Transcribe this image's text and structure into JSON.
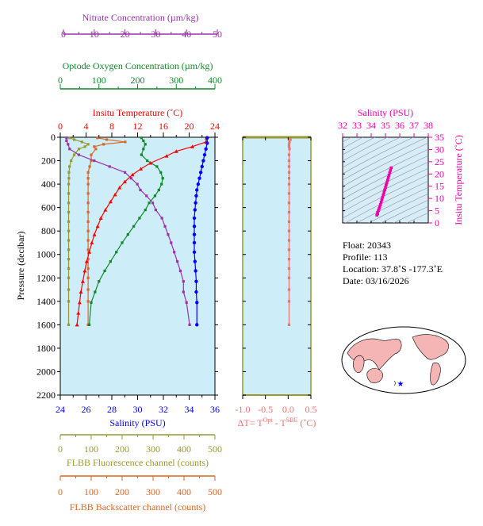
{
  "chart_data": [
    {
      "type": "line",
      "title": "",
      "ylabel": "Pressure (decibar)",
      "ylim": [
        2200,
        0
      ],
      "yticks": [
        "0",
        "200",
        "400",
        "600",
        "800",
        "1000",
        "1200",
        "1400",
        "1600",
        "1800",
        "2000",
        "2200"
      ],
      "grid": false,
      "axes": {
        "temperature": {
          "label": "Insitu Temperature (˚C)",
          "color": "#ff0000",
          "range": [
            0,
            24
          ],
          "ticks": [
            "0",
            "4",
            "8",
            "12",
            "16",
            "20",
            "24"
          ]
        },
        "salinity": {
          "label": "Salinity (PSU)",
          "color": "#0000ff",
          "range": [
            24,
            36
          ],
          "ticks": [
            "24",
            "26",
            "28",
            "30",
            "32",
            "34",
            "36"
          ]
        },
        "nitrate": {
          "label": "Nitrate Concentration (µm/kg)",
          "color": "#9933aa",
          "range": [
            0,
            50
          ],
          "ticks": [
            "0",
            "10",
            "20",
            "30",
            "40",
            "50"
          ]
        },
        "oxygen": {
          "label": "Optode Oxygen Concentration (µm/kg)",
          "color": "#11882a",
          "range": [
            0,
            400
          ],
          "ticks": [
            "0",
            "100",
            "200",
            "300",
            "400"
          ]
        },
        "fluorescence": {
          "label": "FLBB Fluorescence channel (counts)",
          "color": "#999933",
          "range": [
            0,
            500
          ],
          "ticks": [
            "0",
            "100",
            "200",
            "300",
            "400",
            "500"
          ]
        },
        "backscatter": {
          "label": "FLBB Backscatter channel (counts)",
          "color": "#dd6622",
          "range": [
            0,
            500
          ],
          "ticks": [
            "0",
            "100",
            "200",
            "300",
            "400",
            "500"
          ]
        }
      },
      "series": [
        {
          "axis": "temperature",
          "x": [
            22.7,
            22.6,
            20.5,
            18.0,
            16.5,
            14.0,
            12.5,
            11.2,
            10.0,
            9.2,
            8.5,
            7.8,
            7.0,
            6.3,
            5.8,
            5.3,
            4.9,
            4.5,
            4.1,
            3.8,
            3.5,
            3.2,
            3.0,
            2.8,
            2.6
          ],
          "y": [
            5,
            40,
            80,
            120,
            160,
            220,
            270,
            320,
            380,
            430,
            490,
            550,
            620,
            690,
            760,
            830,
            900,
            980,
            1060,
            1140,
            1230,
            1320,
            1410,
            1500,
            1600
          ]
        },
        {
          "axis": "salinity",
          "x": [
            35.4,
            35.4,
            35.3,
            35.2,
            35.1,
            35.0,
            34.9,
            34.8,
            34.7,
            34.6,
            34.55,
            34.5,
            34.45,
            34.4,
            34.4,
            34.4,
            34.4,
            34.4,
            34.45,
            34.5,
            34.55,
            34.55,
            34.6,
            34.6
          ],
          "y": [
            5,
            50,
            100,
            150,
            200,
            250,
            300,
            350,
            400,
            450,
            500,
            560,
            620,
            690,
            760,
            830,
            900,
            980,
            1060,
            1140,
            1230,
            1320,
            1410,
            1600
          ]
        },
        {
          "axis": "nitrate",
          "x": [
            1,
            1,
            1.5,
            2,
            5,
            10,
            15,
            20,
            22,
            24,
            25,
            27,
            29,
            30,
            32,
            33,
            34,
            35,
            36,
            37,
            38,
            39,
            39,
            40,
            41
          ],
          "y": [
            5,
            30,
            60,
            100,
            150,
            200,
            250,
            300,
            350,
            400,
            450,
            500,
            560,
            620,
            690,
            760,
            830,
            900,
            980,
            1060,
            1140,
            1230,
            1320,
            1410,
            1600
          ]
        },
        {
          "axis": "oxygen",
          "x": [
            210,
            215,
            220,
            215,
            210,
            225,
            250,
            260,
            265,
            262,
            255,
            245,
            230,
            220,
            205,
            190,
            175,
            160,
            145,
            130,
            115,
            100,
            90,
            80,
            75
          ],
          "y": [
            5,
            30,
            60,
            100,
            150,
            200,
            250,
            300,
            350,
            400,
            450,
            500,
            560,
            620,
            690,
            760,
            830,
            900,
            980,
            1060,
            1140,
            1230,
            1320,
            1410,
            1600
          ]
        },
        {
          "axis": "fluorescence",
          "x": [
            30,
            45,
            70,
            90,
            80,
            60,
            45,
            35,
            30,
            28,
            28,
            27,
            27,
            27,
            27,
            27,
            27,
            27,
            27,
            27,
            27,
            27,
            27,
            27,
            27
          ],
          "y": [
            5,
            20,
            40,
            60,
            80,
            100,
            150,
            200,
            250,
            300,
            350,
            400,
            480,
            560,
            640,
            720,
            800,
            880,
            960,
            1040,
            1120,
            1200,
            1300,
            1400,
            1600
          ]
        },
        {
          "axis": "backscatter",
          "x": [
            120,
            150,
            210,
            140,
            110,
            115,
            100,
            100,
            95,
            90,
            90,
            90,
            90,
            90,
            90,
            90,
            90,
            90,
            90,
            90,
            90,
            90,
            90,
            90,
            90
          ],
          "y": [
            5,
            20,
            40,
            60,
            80,
            100,
            150,
            200,
            250,
            300,
            350,
            400,
            480,
            560,
            640,
            720,
            800,
            880,
            960,
            1040,
            1120,
            1200,
            1300,
            1400,
            1600
          ]
        }
      ]
    },
    {
      "type": "line",
      "title": "",
      "xlabel": "ΔT= T^Opt - T^SBE (˚C)",
      "xlabel_parts": {
        "pre": "ΔT= T",
        "sup1": "Opt",
        "mid": " - T",
        "sup2": "SBE",
        "post": " (˚C)"
      },
      "xlim": [
        -1.0,
        0.5
      ],
      "xticks": [
        "-1.0",
        "-0.5",
        "0.0",
        "0.5"
      ],
      "ylim": [
        2200,
        0
      ],
      "color": "#f07070",
      "series": [
        {
          "x": [
            0.04,
            0.05,
            0.03,
            0.02,
            0.02,
            0.03,
            0.02,
            0.02,
            0.02,
            0.02,
            0.02,
            0.02,
            0.02,
            0.02,
            0.02,
            0.02,
            0.02,
            0.02,
            0.02,
            0.02,
            0.02,
            0.02,
            0.02,
            0.02,
            0.02
          ],
          "y": [
            5,
            20,
            40,
            60,
            80,
            100,
            150,
            200,
            250,
            300,
            350,
            400,
            480,
            560,
            640,
            720,
            800,
            880,
            960,
            1040,
            1120,
            1200,
            1300,
            1400,
            1600
          ]
        }
      ]
    },
    {
      "type": "scatter",
      "title": "",
      "xlabel": "Salinity (PSU)",
      "ylabel": "Insitu Temperature (˚C)",
      "xlim": [
        32,
        38
      ],
      "ylim": [
        0,
        35
      ],
      "xticks": [
        "32",
        "33",
        "34",
        "35",
        "36",
        "37",
        "38"
      ],
      "yticks": [
        "0",
        "5",
        "10",
        "15",
        "20",
        "25",
        "30",
        "35"
      ],
      "color": "#ee00aa",
      "series": [
        {
          "x": [
            35.4,
            35.35,
            35.3,
            35.25,
            35.2,
            35.15,
            35.1,
            35.05,
            35.0,
            34.95,
            34.9,
            34.85,
            34.8,
            34.75,
            34.7,
            34.65,
            34.6,
            34.55,
            34.5,
            34.45,
            34.45,
            34.4
          ],
          "y": [
            22.5,
            21.5,
            20.5,
            19.5,
            18.5,
            17.5,
            16.5,
            15.5,
            14.5,
            13.5,
            12.5,
            11.5,
            10.5,
            9.5,
            8.5,
            7.5,
            6.5,
            5.8,
            5.0,
            4.3,
            3.7,
            3.2
          ]
        }
      ]
    }
  ],
  "info": {
    "float": "Float:  20343",
    "profile": "Profile:  113",
    "location": "Location:  37.8˚S  -177.3˚E",
    "date": "Date:  03/16/2026"
  },
  "colors": {
    "panel_bg": "#cdeef8",
    "map_land": "#f5b5b5",
    "map_ocean": "#ffffff",
    "ts_bg": "#d8ecf8"
  }
}
